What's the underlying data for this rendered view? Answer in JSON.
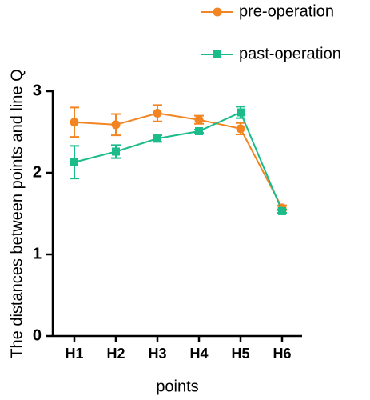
{
  "chart_data": {
    "type": "line",
    "y_label": "The distances between points and line Q",
    "x_label": "points",
    "categories": [
      "H1",
      "H2",
      "H3",
      "H4",
      "H5",
      "H6"
    ],
    "series": [
      {
        "name": "pre-operation",
        "color": "#f28522",
        "marker": "circle",
        "values": [
          2.62,
          2.59,
          2.73,
          2.65,
          2.54,
          1.57
        ],
        "errors": [
          0.18,
          0.13,
          0.1,
          0.05,
          0.07,
          0.03
        ]
      },
      {
        "name": "past-operation",
        "color": "#1bbc8a",
        "marker": "square",
        "values": [
          2.13,
          2.26,
          2.42,
          2.51,
          2.74,
          1.53
        ],
        "errors": [
          0.2,
          0.08,
          0.04,
          0.02,
          0.07,
          0.02
        ]
      }
    ],
    "ylim": [
      0,
      3
    ],
    "yticks": [
      0,
      1,
      2,
      3
    ]
  }
}
